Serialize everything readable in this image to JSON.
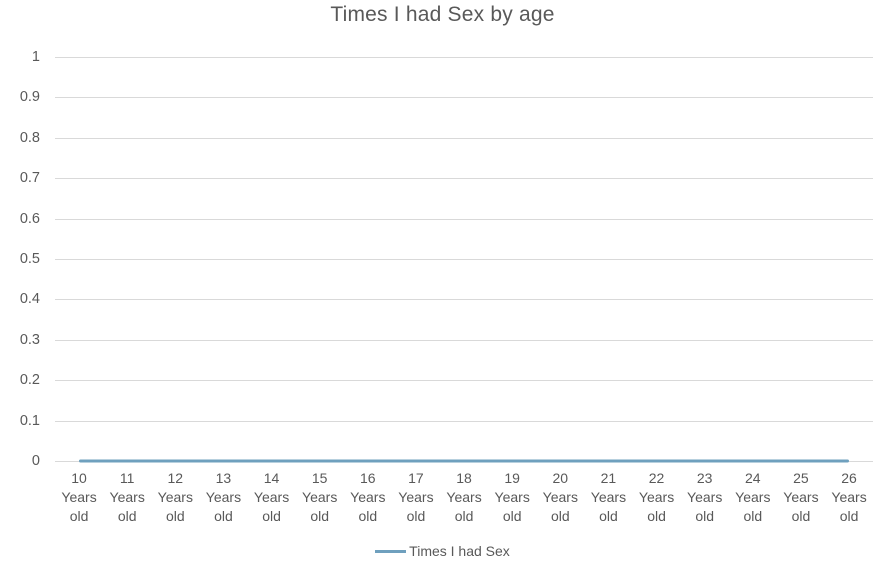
{
  "chart_data": {
    "type": "line",
    "title": "Times I had Sex by age",
    "categories": [
      "10 Years old",
      "11 Years old",
      "12 Years old",
      "13 Years old",
      "14 Years old",
      "15 Years old",
      "16 Years old",
      "17 Years old",
      "18 Years old",
      "19 Years old",
      "20 Years old",
      "21 Years old",
      "22 Years old",
      "23 Years old",
      "24 Years old",
      "25 Years old",
      "26 Years old"
    ],
    "series": [
      {
        "name": "Times I had Sex",
        "values": [
          0,
          0,
          0,
          0,
          0,
          0,
          0,
          0,
          0,
          0,
          0,
          0,
          0,
          0,
          0,
          0,
          0
        ],
        "color": "#6FA0BE"
      }
    ],
    "xlabel": "",
    "ylabel": "",
    "ylim": [
      0,
      1
    ],
    "yticks": [
      "0",
      "0.1",
      "0.2",
      "0.3",
      "0.4",
      "0.5",
      "0.6",
      "0.7",
      "0.8",
      "0.9",
      "1"
    ],
    "grid": true,
    "legend_position": "bottom",
    "text_color": "#595959",
    "gridline_color": "#D9D9D9",
    "background": "#FFFFFF"
  }
}
